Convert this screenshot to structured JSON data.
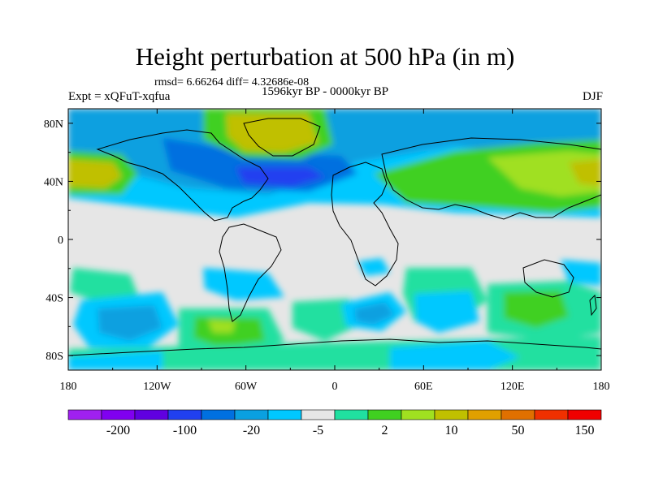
{
  "title": "Height perturbation at 500 hPa (in m)",
  "stats": "rmsd= 6.66264 diff= 4.32686e-08",
  "experiment": "Expt = xQFuT-xqfua",
  "period": "1596kyr BP - 0000kyr BP",
  "season": "DJF",
  "axes": {
    "lat_labels": [
      "80N",
      "40N",
      "0",
      "40S",
      "80S"
    ],
    "lat_values": [
      80,
      40,
      0,
      -40,
      -80
    ],
    "lon_labels": [
      "180",
      "120W",
      "60W",
      "0",
      "60E",
      "120E",
      "180"
    ],
    "lon_values": [
      -180,
      -120,
      -60,
      0,
      60,
      120,
      180
    ],
    "lat_range": [
      -90,
      90
    ],
    "lon_range": [
      -180,
      180
    ]
  },
  "colorbar": {
    "colors": [
      "#a020f0",
      "#8000f0",
      "#6000e0",
      "#2040f0",
      "#0070e0",
      "#0aa0e0",
      "#00c8ff",
      "#e6e6e6",
      "#20e0a0",
      "#40d020",
      "#a0e020",
      "#c0c000",
      "#e0a000",
      "#e07000",
      "#f03000",
      "#f00000"
    ],
    "labels": [
      "-200",
      "-100",
      "-20",
      "-5",
      "2",
      "10",
      "50",
      "150"
    ]
  },
  "field_colors": {
    "neutral": "#e6e6e6",
    "light_pos": "#20e0a0",
    "pos": "#40d020",
    "pos2": "#a0e020",
    "pos3": "#c0c000",
    "light_neg": "#00c8ff",
    "neg": "#0aa0e0",
    "neg2": "#0070e0",
    "neg3": "#2040f0"
  }
}
